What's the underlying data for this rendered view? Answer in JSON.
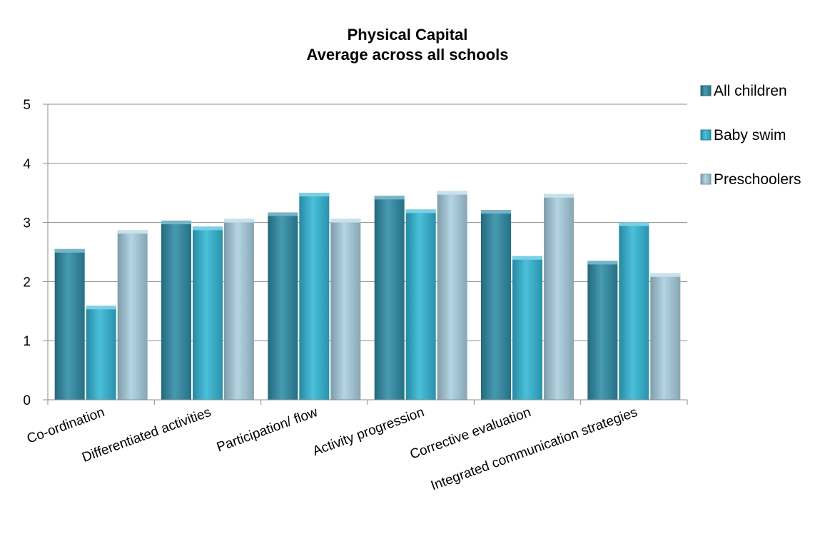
{
  "chart_data": {
    "type": "bar",
    "title": "Physical Capital",
    "subtitle": "Average across all schools",
    "xlabel": "",
    "ylabel": "",
    "ylim": [
      0,
      5
    ],
    "yticks": [
      "0",
      "1",
      "2",
      "3",
      "4",
      "5"
    ],
    "grid": true,
    "legend_position": "right",
    "categories": [
      "Co-ordination",
      "Differentiated activities",
      "Participation/ flow",
      "Activity progression",
      "Corrective evaluation",
      "Integrated communication strategies"
    ],
    "series": [
      {
        "name": "All children",
        "color": "#2e8ca6",
        "values": [
          2.55,
          3.03,
          3.17,
          3.45,
          3.21,
          2.35
        ]
      },
      {
        "name": "Baby swim",
        "color": "#33b7d6",
        "values": [
          1.59,
          2.93,
          3.5,
          3.22,
          2.43,
          3.0
        ]
      },
      {
        "name": "Preschoolers",
        "color": "#a9cfe0",
        "values": [
          2.87,
          3.06,
          3.06,
          3.53,
          3.48,
          2.14
        ]
      }
    ]
  }
}
